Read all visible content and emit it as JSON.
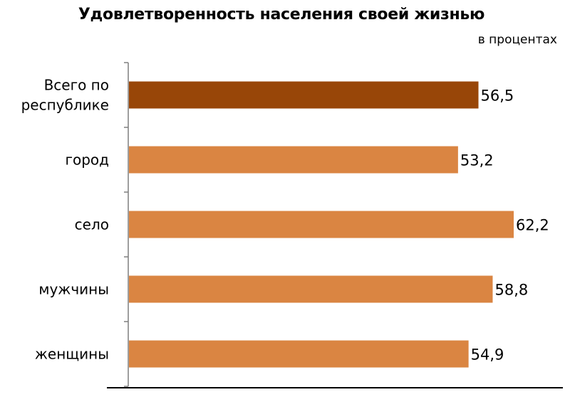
{
  "chart_data": {
    "type": "bar",
    "orientation": "horizontal",
    "title": "Удовлетворенность населения своей жизнью",
    "subtitle": "в процентах",
    "categories": [
      [
        "Всего по",
        "республике"
      ],
      [
        "город"
      ],
      [
        "село"
      ],
      [
        "мужчины"
      ],
      [
        "женщины"
      ]
    ],
    "values": [
      56.5,
      53.2,
      62.2,
      58.8,
      54.9
    ],
    "value_labels": [
      "56,5",
      "53,2",
      "62,2",
      "58,8",
      "54,9"
    ],
    "xlim": [
      0,
      70
    ],
    "grid": false,
    "legend": "none",
    "colors": [
      "#984608",
      "#DA8542",
      "#DA8542",
      "#DA8542",
      "#DA8542"
    ]
  }
}
